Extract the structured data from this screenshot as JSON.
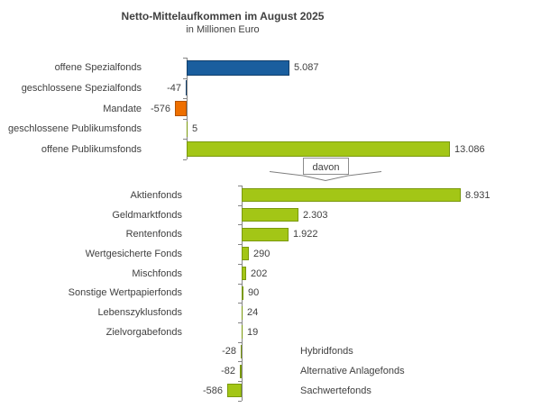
{
  "header": {
    "title": "Netto-Mittelaufkommen im August 2025",
    "subtitle": "in Millionen Euro"
  },
  "divider_label": "davon",
  "colors": {
    "blue": "#1A5E9E",
    "blue_border": "#123F6B",
    "orange": "#EE6F00",
    "orange_border": "#B35300",
    "green": "#A3C616",
    "green_border": "#7A990D",
    "axis": "#858585",
    "text": "#404040"
  },
  "chart_data": [
    {
      "type": "bar",
      "orientation": "horizontal",
      "title": "Netto-Mittelaufkommen im August 2025",
      "unit": "in Millionen Euro",
      "categories": [
        "offene Spezialfonds",
        "geschlossene Spezialfonds",
        "Mandate",
        "geschlossene Publikumsfonds",
        "offene Publikumsfonds"
      ],
      "values": [
        5087,
        -47,
        -576,
        5,
        13086
      ],
      "display_values": [
        "5.087",
        "-47",
        "-576",
        "5",
        "13.086"
      ],
      "bar_color_keys": [
        "blue",
        "blue",
        "orange",
        "green",
        "green"
      ],
      "label_sides": [
        "left",
        "left",
        "left",
        "left",
        "left"
      ],
      "grid": false,
      "legend": false
    },
    {
      "type": "bar",
      "orientation": "horizontal",
      "title": "",
      "unit": "in Millionen Euro",
      "categories": [
        "Aktienfonds",
        "Geldmarktfonds",
        "Rentenfonds",
        "Wertgesicherte Fonds",
        "Mischfonds",
        "Sonstige Wertpapierfonds",
        "Lebenszyklusfonds",
        "Zielvorgabefonds",
        "Hybridfonds",
        "Alternative Anlagefonds",
        "Sachwertefonds"
      ],
      "values": [
        8931,
        2303,
        1922,
        290,
        202,
        90,
        24,
        19,
        -28,
        -82,
        -586
      ],
      "display_values": [
        "8.931",
        "2.303",
        "1.922",
        "290",
        "202",
        "90",
        "24",
        "19",
        "-28",
        "-82",
        "-586"
      ],
      "bar_color_keys": [
        "green",
        "green",
        "green",
        "green",
        "green",
        "green",
        "green",
        "green",
        "green",
        "green",
        "green"
      ],
      "label_sides": [
        "left",
        "left",
        "left",
        "left",
        "left",
        "left",
        "left",
        "left",
        "right",
        "right",
        "right"
      ],
      "grid": false,
      "legend": false
    }
  ]
}
